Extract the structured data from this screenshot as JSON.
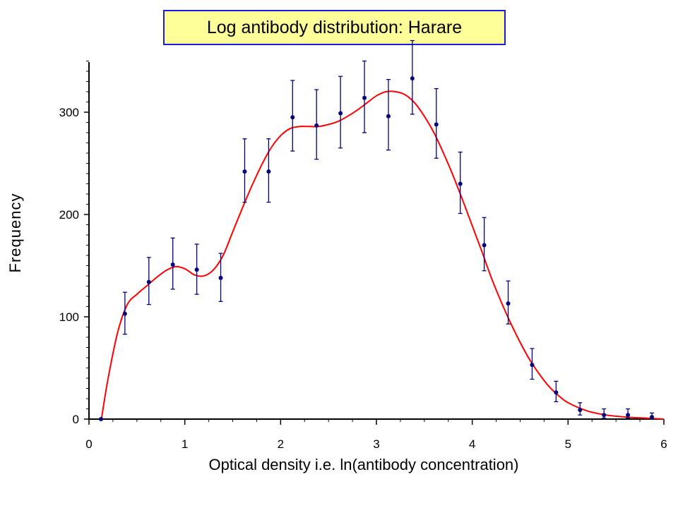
{
  "chart_data": {
    "type": "scatter",
    "title": "Log antibody distribution: Harare",
    "xlabel": "Optical density i.e. ln(antibody concentration)",
    "ylabel": "Frequency",
    "xlim": [
      0,
      6
    ],
    "ylim": [
      0,
      350
    ],
    "xticks": [
      "0",
      "1",
      "2",
      "3",
      "4",
      "5",
      "6"
    ],
    "yticks": [
      "0",
      "100",
      "200",
      "300"
    ],
    "grid": false,
    "series": [
      {
        "kind": "points_with_error_bars",
        "color": "#000080",
        "points": [
          {
            "x": 0.125,
            "y": 0,
            "err_low": 0,
            "err_high": 0
          },
          {
            "x": 0.375,
            "y": 103,
            "err_low": 20,
            "err_high": 21
          },
          {
            "x": 0.625,
            "y": 134,
            "err_low": 22,
            "err_high": 24
          },
          {
            "x": 0.875,
            "y": 151,
            "err_low": 24,
            "err_high": 26
          },
          {
            "x": 1.125,
            "y": 146,
            "err_low": 24,
            "err_high": 25
          },
          {
            "x": 1.375,
            "y": 138,
            "err_low": 23,
            "err_high": 24
          },
          {
            "x": 1.625,
            "y": 242,
            "err_low": 30,
            "err_high": 32
          },
          {
            "x": 1.875,
            "y": 242,
            "err_low": 30,
            "err_high": 32
          },
          {
            "x": 2.125,
            "y": 295,
            "err_low": 33,
            "err_high": 36
          },
          {
            "x": 2.375,
            "y": 287,
            "err_low": 33,
            "err_high": 35
          },
          {
            "x": 2.625,
            "y": 299,
            "err_low": 34,
            "err_high": 36
          },
          {
            "x": 2.875,
            "y": 314,
            "err_low": 34,
            "err_high": 36
          },
          {
            "x": 3.125,
            "y": 296,
            "err_low": 33,
            "err_high": 36
          },
          {
            "x": 3.375,
            "y": 333,
            "err_low": 35,
            "err_high": 37
          },
          {
            "x": 3.625,
            "y": 288,
            "err_low": 33,
            "err_high": 35
          },
          {
            "x": 3.875,
            "y": 230,
            "err_low": 29,
            "err_high": 31
          },
          {
            "x": 4.125,
            "y": 170,
            "err_low": 25,
            "err_high": 27
          },
          {
            "x": 4.375,
            "y": 113,
            "err_low": 20,
            "err_high": 22
          },
          {
            "x": 4.625,
            "y": 53,
            "err_low": 14,
            "err_high": 16
          },
          {
            "x": 4.875,
            "y": 26,
            "err_low": 9,
            "err_high": 11
          },
          {
            "x": 5.125,
            "y": 9,
            "err_low": 5,
            "err_high": 7
          },
          {
            "x": 5.375,
            "y": 4,
            "err_low": 3,
            "err_high": 6
          },
          {
            "x": 5.625,
            "y": 4,
            "err_low": 3,
            "err_high": 6
          },
          {
            "x": 5.875,
            "y": 2,
            "err_low": 2,
            "err_high": 4
          }
        ]
      },
      {
        "kind": "fitted_curve",
        "color": "#ff0000",
        "x": [
          0.13,
          0.2,
          0.3,
          0.4,
          0.5,
          0.6,
          0.7,
          0.8,
          0.9,
          1.0,
          1.1,
          1.2,
          1.3,
          1.4,
          1.5,
          1.6,
          1.7,
          1.8,
          1.9,
          2.0,
          2.1,
          2.2,
          2.3,
          2.4,
          2.5,
          2.6,
          2.7,
          2.8,
          2.9,
          3.0,
          3.1,
          3.2,
          3.3,
          3.4,
          3.5,
          3.6,
          3.7,
          3.8,
          3.9,
          4.0,
          4.1,
          4.2,
          4.3,
          4.4,
          4.5,
          4.6,
          4.7,
          4.8,
          4.9,
          5.0,
          5.2,
          5.4,
          5.6,
          5.8,
          6.0
        ],
        "y": [
          0,
          40,
          85,
          112,
          122,
          130,
          138,
          145,
          149,
          147,
          141,
          140,
          146,
          160,
          183,
          206,
          228,
          248,
          265,
          277,
          284,
          286,
          286,
          286,
          288,
          291,
          296,
          302,
          309,
          316,
          320,
          320,
          317,
          309,
          296,
          280,
          260,
          238,
          214,
          189,
          164,
          138,
          115,
          94,
          75,
          58,
          44,
          32,
          23,
          16,
          8,
          4,
          2,
          1,
          0
        ]
      }
    ]
  }
}
